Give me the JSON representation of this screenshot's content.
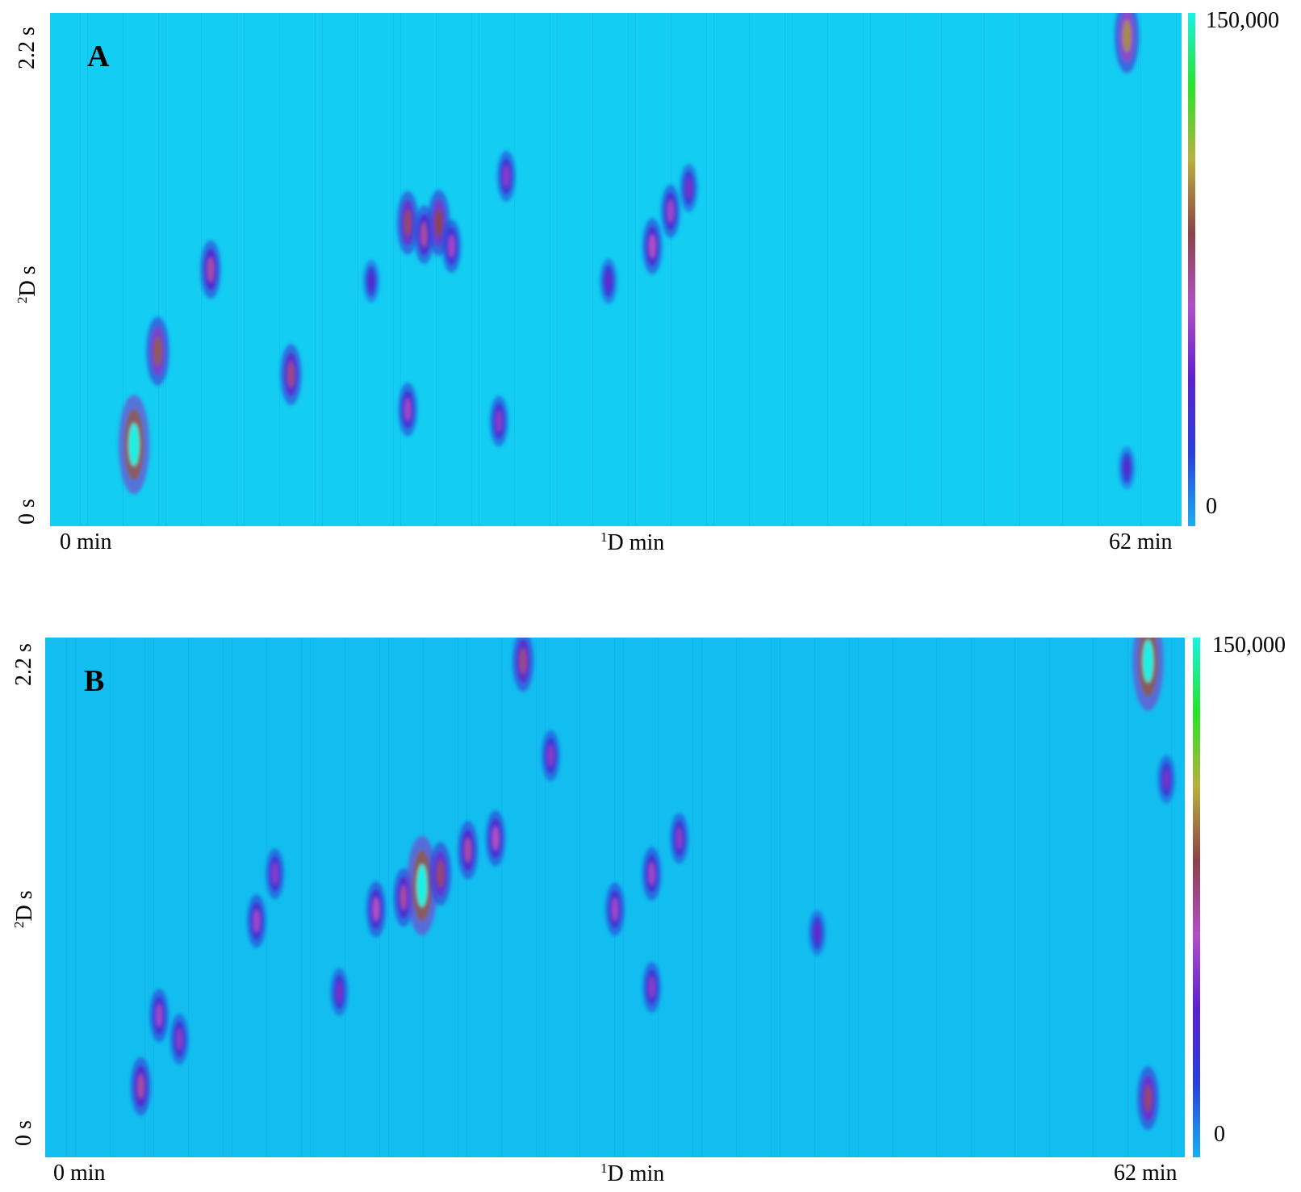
{
  "colors": {
    "background_a": "#13cdf3",
    "background_b": "#12bef0",
    "colorbar": [
      "#1ab0ef",
      "#2a3ed9",
      "#5a22cc",
      "#b24fc6",
      "#8a4448",
      "#b8b040",
      "#29e229",
      "#19f2e4"
    ]
  },
  "colorbar": {
    "max_label": "150,000",
    "min_label": "0"
  },
  "chart_data": [
    {
      "type": "heatmap",
      "panel": "A",
      "x_axis": {
        "left_label": "0 min",
        "center_label": "1",
        "center_label_suffix": "D min",
        "right_label": "62 min",
        "range": [
          0,
          62
        ],
        "unit": "min"
      },
      "y_axis": {
        "top_label": "2.2 s",
        "center_label": "2",
        "center_label_suffix": "D s",
        "bottom_label": "0 s",
        "range": [
          0,
          2.2
        ],
        "unit": "s"
      },
      "color_scale": {
        "min": 0,
        "max": 150000
      },
      "grid": false,
      "peaks": [
        {
          "x": 4.6,
          "y": 0.35,
          "intensity": 150000
        },
        {
          "x": 5.9,
          "y": 0.75,
          "intensity": 90000
        },
        {
          "x": 8.8,
          "y": 1.1,
          "intensity": 70000
        },
        {
          "x": 13.2,
          "y": 0.65,
          "intensity": 75000
        },
        {
          "x": 17.6,
          "y": 1.05,
          "intensity": 40000
        },
        {
          "x": 19.6,
          "y": 1.3,
          "intensity": 80000
        },
        {
          "x": 19.6,
          "y": 0.5,
          "intensity": 60000
        },
        {
          "x": 20.5,
          "y": 1.25,
          "intensity": 70000
        },
        {
          "x": 21.3,
          "y": 1.3,
          "intensity": 85000
        },
        {
          "x": 22.0,
          "y": 1.2,
          "intensity": 60000
        },
        {
          "x": 24.6,
          "y": 0.45,
          "intensity": 55000
        },
        {
          "x": 25.0,
          "y": 1.5,
          "intensity": 55000
        },
        {
          "x": 30.6,
          "y": 1.05,
          "intensity": 45000
        },
        {
          "x": 33.0,
          "y": 1.2,
          "intensity": 65000
        },
        {
          "x": 34.0,
          "y": 1.35,
          "intensity": 60000
        },
        {
          "x": 35.0,
          "y": 1.45,
          "intensity": 50000
        },
        {
          "x": 59.0,
          "y": 2.1,
          "intensity": 100000
        },
        {
          "x": 59.0,
          "y": 0.25,
          "intensity": 40000
        }
      ]
    },
    {
      "type": "heatmap",
      "panel": "B",
      "x_axis": {
        "left_label": "0 min",
        "center_label": "1",
        "center_label_suffix": "D min",
        "right_label": "62 min",
        "range": [
          0,
          62
        ],
        "unit": "min"
      },
      "y_axis": {
        "top_label": "2.2 s",
        "center_label": "2",
        "center_label_suffix": "D s",
        "bottom_label": "0 s",
        "range": [
          0,
          2.2
        ],
        "unit": "s"
      },
      "color_scale": {
        "min": 0,
        "max": 150000
      },
      "grid": false,
      "peaks": [
        {
          "x": 5.2,
          "y": 0.3,
          "intensity": 70000
        },
        {
          "x": 6.2,
          "y": 0.6,
          "intensity": 60000
        },
        {
          "x": 7.3,
          "y": 0.5,
          "intensity": 55000
        },
        {
          "x": 11.5,
          "y": 1.0,
          "intensity": 60000
        },
        {
          "x": 12.5,
          "y": 1.2,
          "intensity": 55000
        },
        {
          "x": 16.0,
          "y": 0.7,
          "intensity": 50000
        },
        {
          "x": 18.0,
          "y": 1.05,
          "intensity": 65000
        },
        {
          "x": 19.5,
          "y": 1.1,
          "intensity": 70000
        },
        {
          "x": 20.5,
          "y": 1.15,
          "intensity": 150000
        },
        {
          "x": 21.5,
          "y": 1.2,
          "intensity": 80000
        },
        {
          "x": 23.0,
          "y": 1.3,
          "intensity": 70000
        },
        {
          "x": 24.5,
          "y": 1.35,
          "intensity": 65000
        },
        {
          "x": 26.0,
          "y": 2.1,
          "intensity": 75000
        },
        {
          "x": 27.5,
          "y": 1.7,
          "intensity": 55000
        },
        {
          "x": 31.0,
          "y": 1.05,
          "intensity": 60000
        },
        {
          "x": 33.0,
          "y": 0.72,
          "intensity": 55000
        },
        {
          "x": 33.0,
          "y": 1.2,
          "intensity": 60000
        },
        {
          "x": 34.5,
          "y": 1.35,
          "intensity": 55000
        },
        {
          "x": 42.0,
          "y": 0.95,
          "intensity": 45000
        },
        {
          "x": 60.0,
          "y": 2.1,
          "intensity": 150000
        },
        {
          "x": 60.0,
          "y": 0.25,
          "intensity": 80000
        },
        {
          "x": 61.0,
          "y": 1.6,
          "intensity": 50000
        }
      ]
    }
  ]
}
